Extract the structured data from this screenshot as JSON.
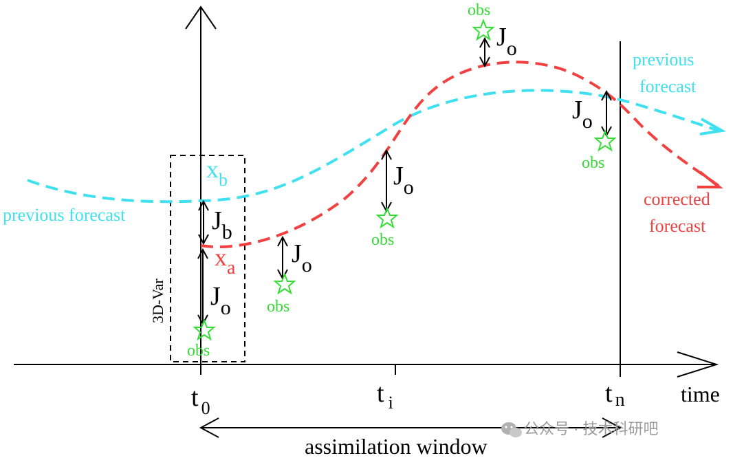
{
  "colors": {
    "previous": "#3fe0f0",
    "corrected": "#f04040",
    "obs": "#33dd33",
    "axis": "#000000",
    "watermark": "#9a9a9a"
  },
  "labels": {
    "time": "time",
    "t0": "t",
    "t0_sub": "0",
    "ti": "t",
    "ti_sub": "i",
    "tn": "t",
    "tn_sub": "n",
    "assimilation_window": "assimilation window",
    "three_d_var": "3D-Var",
    "previous_forecast": "previous forecast",
    "previous_forecast_right_1": "previous",
    "previous_forecast_right_2": "forecast",
    "corrected_forecast_1": "corrected",
    "corrected_forecast_2": "forecast",
    "xb_main": "x",
    "xb_sub": "b",
    "xa_main": "x",
    "xa_sub": "a",
    "jb_main": "J",
    "jb_sub": "b",
    "jo_main": "J",
    "jo_sub": "o",
    "obs": "obs",
    "watermark": "公众号 · 技术科研吧"
  }
}
